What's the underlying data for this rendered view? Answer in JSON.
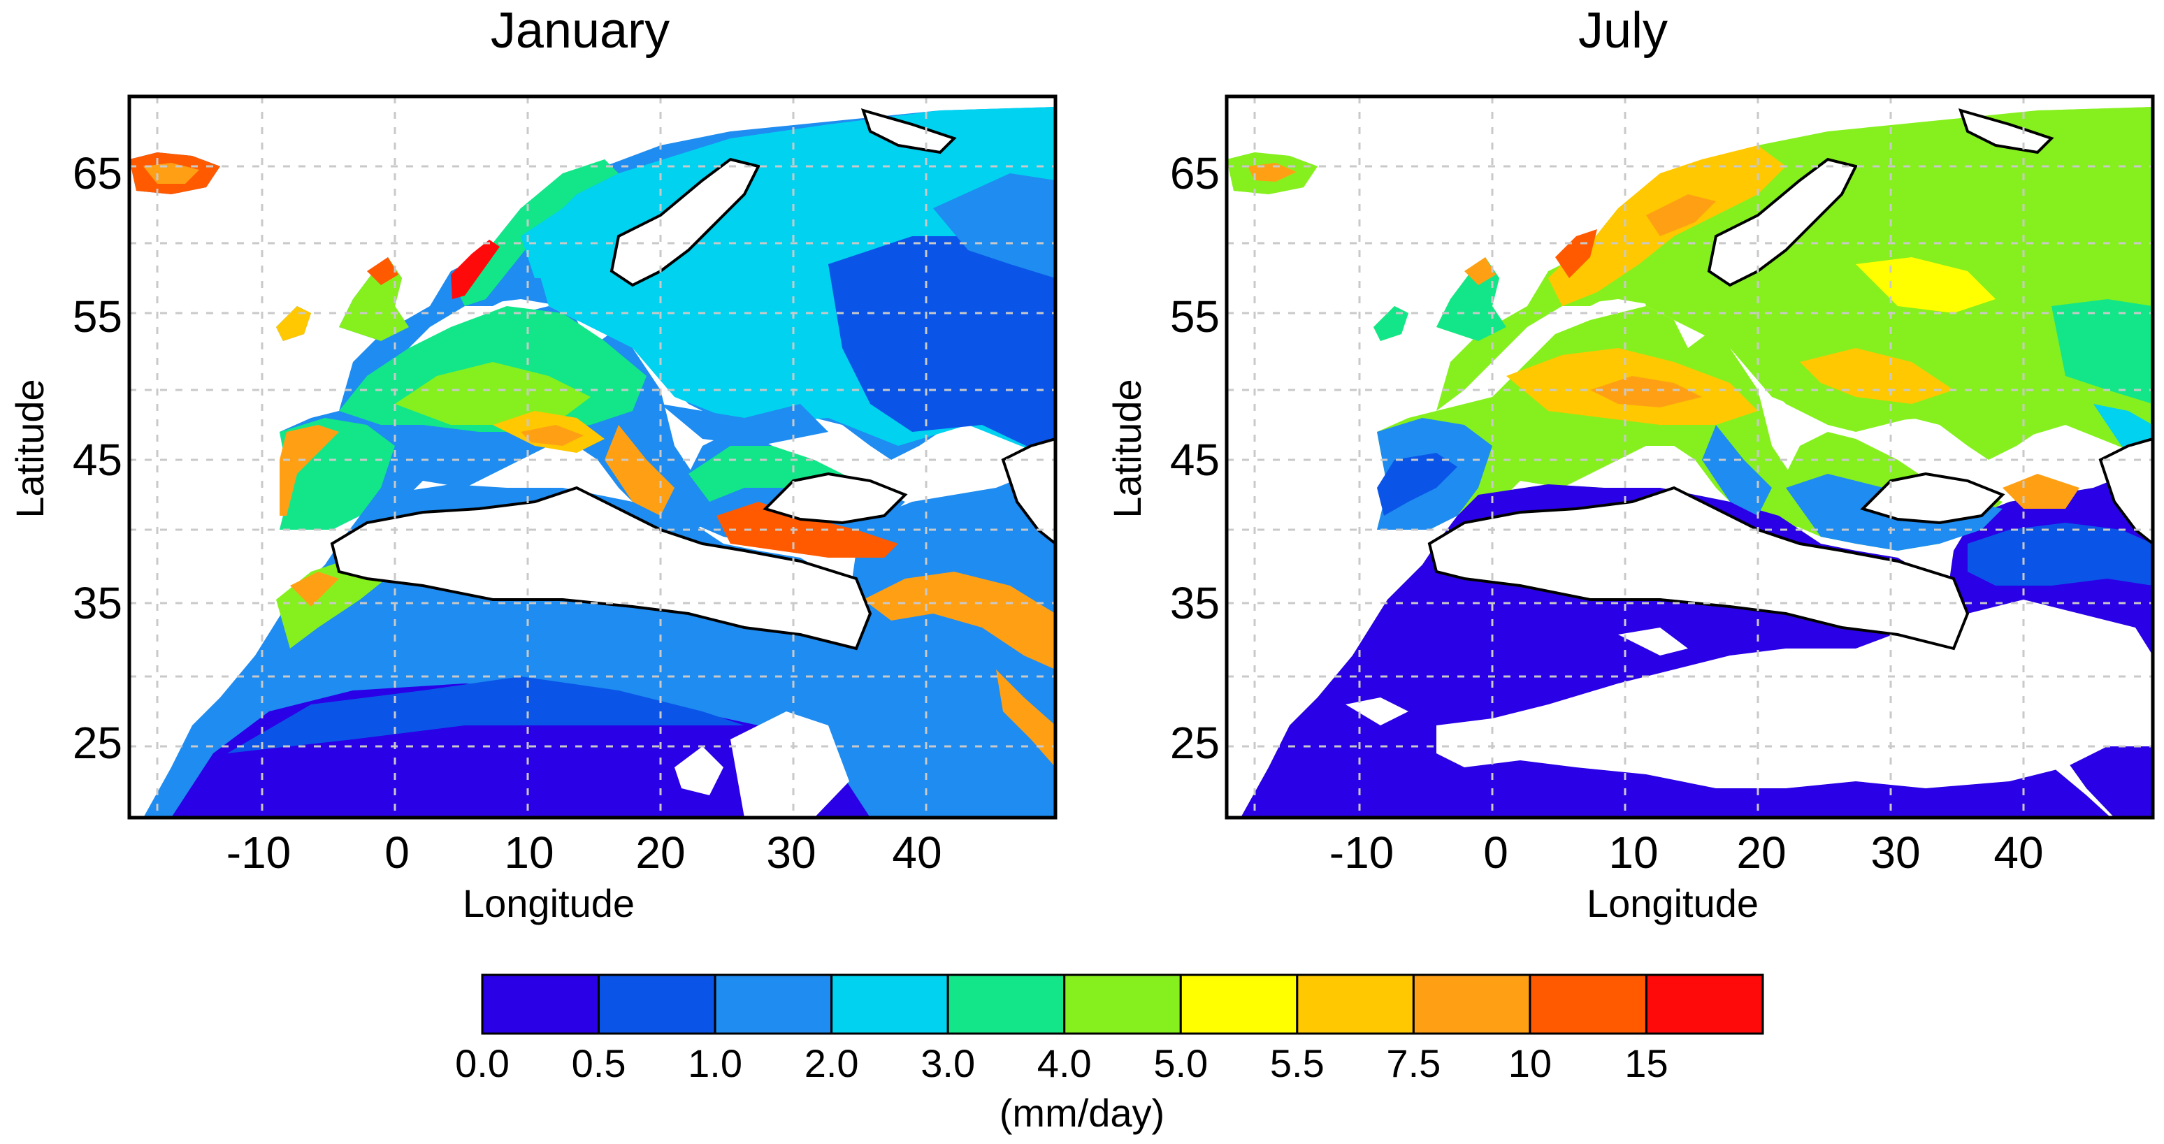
{
  "panels": [
    {
      "id": "january",
      "title": "January",
      "xlabel": "Longitude",
      "ylabel": "Latitude",
      "xticks": [
        "-10",
        "0",
        "10",
        "20",
        "30",
        "40"
      ],
      "yticks": [
        "65",
        "55",
        "45",
        "35",
        "25"
      ]
    },
    {
      "id": "july",
      "title": "July",
      "xlabel": "Longitude",
      "ylabel": "Latitude",
      "xticks": [
        "-10",
        "0",
        "10",
        "20",
        "30",
        "40"
      ],
      "yticks": [
        "65",
        "55",
        "45",
        "35",
        "25"
      ]
    }
  ],
  "map_extent": {
    "lon": [
      -19,
      50
    ],
    "lat": [
      20,
      70
    ]
  },
  "colorbar": {
    "label": "(mm/day)",
    "tick_labels": [
      "0.0",
      "0.5",
      "1.0",
      "2.0",
      "3.0",
      "4.0",
      "5.0",
      "5.5",
      "7.5",
      "10",
      "15"
    ],
    "colors": [
      "#2a00e6",
      "#0a55e8",
      "#1e8cf0",
      "#00d2f0",
      "#13e688",
      "#86f01e",
      "#ffff00",
      "#ffc800",
      "#ffa014",
      "#ff5a00",
      "#ff0a0a"
    ]
  }
}
